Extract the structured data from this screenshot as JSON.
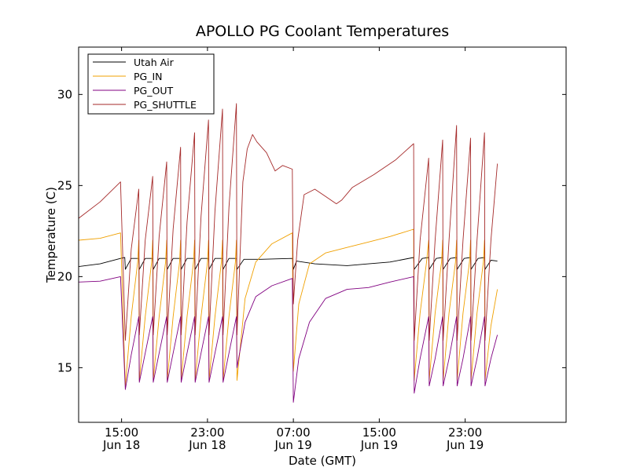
{
  "chart_data": {
    "type": "line",
    "title": "APOLLO PG Coolant Temperatures",
    "xlabel": "Date (GMT)",
    "ylabel": "Temperature (C)",
    "x_unit": "hours since Jun 18 00:00 GMT",
    "xlim": [
      11.0,
      56.4
    ],
    "ylim": [
      12.0,
      32.6
    ],
    "legend_position": "top-left",
    "x_ticks": [
      {
        "value": 15,
        "line1": "15:00",
        "line2": "Jun 18"
      },
      {
        "value": 23,
        "line1": "23:00",
        "line2": "Jun 18"
      },
      {
        "value": 31,
        "line1": "07:00",
        "line2": "Jun 19"
      },
      {
        "value": 39,
        "line1": "15:00",
        "line2": "Jun 19"
      },
      {
        "value": 47,
        "line1": "23:00",
        "line2": "Jun 19"
      }
    ],
    "y_ticks": [
      {
        "value": 15,
        "label": "15"
      },
      {
        "value": 20,
        "label": "20"
      },
      {
        "value": 25,
        "label": "25"
      },
      {
        "value": 30,
        "label": "30"
      }
    ],
    "series": [
      {
        "name": "Utah Air",
        "color": "#000000",
        "x": [
          11.0,
          13.0,
          14.9,
          15.3,
          15.35,
          15.9,
          16.6,
          16.65,
          17.2,
          17.9,
          17.95,
          18.5,
          19.2,
          19.25,
          19.8,
          20.5,
          20.55,
          21.1,
          21.8,
          21.85,
          22.4,
          23.1,
          23.15,
          23.7,
          24.4,
          24.45,
          25.0,
          25.7,
          25.75,
          26.4,
          28.0,
          30.9,
          31.0,
          31.3,
          33.0,
          36.0,
          38.0,
          40.0,
          42.2,
          42.25,
          43.0,
          43.6,
          43.65,
          44.3,
          44.9,
          44.95,
          45.6,
          46.2,
          46.25,
          46.9,
          47.5,
          47.55,
          48.2,
          48.8,
          48.85,
          49.4,
          50.0
        ],
        "y": [
          20.55,
          20.7,
          21.0,
          21.05,
          20.4,
          21.0,
          21.0,
          20.4,
          21.0,
          21.0,
          20.4,
          21.0,
          21.0,
          20.4,
          21.0,
          21.0,
          20.4,
          21.0,
          21.0,
          20.4,
          21.0,
          21.0,
          20.4,
          21.0,
          21.0,
          20.4,
          21.0,
          21.0,
          20.4,
          20.95,
          20.95,
          21.0,
          20.4,
          20.85,
          20.7,
          20.6,
          20.7,
          20.8,
          21.05,
          20.4,
          21.0,
          21.05,
          20.4,
          21.0,
          21.05,
          20.4,
          21.0,
          21.05,
          20.4,
          21.0,
          21.05,
          20.4,
          21.0,
          21.05,
          20.4,
          20.9,
          20.85
        ]
      },
      {
        "name": "PG_IN",
        "color": "#f0a000",
        "x": [
          11.0,
          13.0,
          14.9,
          15.35,
          15.9,
          16.5,
          16.6,
          16.65,
          17.2,
          17.8,
          17.9,
          17.95,
          18.5,
          19.1,
          19.2,
          19.25,
          19.8,
          20.4,
          20.5,
          20.55,
          21.1,
          21.7,
          21.8,
          21.85,
          22.4,
          23.0,
          23.1,
          23.15,
          23.7,
          24.3,
          24.4,
          24.45,
          25.0,
          25.6,
          25.7,
          25.75,
          26.5,
          27.5,
          29.0,
          30.9,
          31.0,
          31.5,
          32.5,
          34.0,
          36.0,
          38.0,
          40.0,
          42.2,
          42.25,
          42.8,
          43.4,
          43.6,
          43.65,
          44.2,
          44.8,
          44.9,
          44.95,
          45.5,
          46.1,
          46.2,
          46.25,
          46.8,
          47.4,
          47.5,
          47.55,
          48.1,
          48.7,
          48.8,
          48.85,
          49.4,
          50.0
        ],
        "y": [
          22.0,
          22.1,
          22.4,
          14.0,
          17.8,
          20.8,
          22.0,
          14.3,
          17.8,
          20.8,
          22.0,
          14.3,
          17.8,
          20.8,
          22.0,
          14.3,
          17.8,
          20.8,
          22.0,
          14.3,
          17.8,
          20.8,
          22.0,
          14.3,
          17.8,
          20.8,
          22.0,
          14.3,
          17.8,
          20.8,
          22.0,
          14.3,
          17.8,
          20.8,
          22.0,
          14.3,
          18.8,
          20.8,
          21.8,
          22.4,
          14.8,
          18.5,
          20.7,
          21.3,
          21.6,
          21.9,
          22.2,
          22.6,
          14.3,
          18.0,
          20.8,
          22.0,
          14.3,
          18.0,
          20.8,
          22.0,
          14.3,
          18.0,
          20.8,
          22.0,
          14.3,
          18.0,
          20.8,
          22.0,
          14.3,
          18.0,
          20.8,
          22.0,
          14.3,
          17.3,
          19.3
        ]
      },
      {
        "name": "PG_OUT",
        "color": "#800080",
        "x": [
          11.0,
          13.0,
          14.9,
          15.35,
          15.9,
          16.6,
          16.65,
          17.2,
          17.9,
          17.95,
          18.5,
          19.2,
          19.25,
          19.8,
          20.5,
          20.55,
          21.1,
          21.8,
          21.85,
          22.4,
          23.1,
          23.15,
          23.7,
          24.4,
          24.45,
          25.0,
          25.7,
          25.75,
          26.5,
          27.5,
          29.0,
          30.9,
          31.0,
          31.5,
          32.5,
          34.0,
          36.0,
          38.0,
          40.0,
          42.2,
          42.25,
          42.8,
          43.6,
          43.65,
          44.2,
          44.9,
          44.95,
          45.5,
          46.2,
          46.25,
          46.8,
          47.5,
          47.55,
          48.1,
          48.8,
          48.85,
          49.4,
          50.0
        ],
        "y": [
          19.7,
          19.75,
          20.0,
          13.8,
          15.7,
          17.8,
          14.2,
          15.8,
          17.8,
          14.2,
          15.8,
          17.8,
          14.2,
          15.8,
          17.8,
          14.2,
          15.8,
          17.8,
          14.2,
          15.8,
          17.8,
          14.2,
          15.8,
          17.8,
          14.2,
          15.8,
          17.8,
          15.0,
          17.5,
          18.9,
          19.5,
          19.9,
          13.1,
          15.5,
          17.5,
          18.8,
          19.3,
          19.4,
          19.7,
          20.0,
          13.6,
          15.5,
          17.8,
          14.0,
          15.5,
          17.8,
          14.0,
          15.5,
          17.8,
          14.0,
          15.5,
          17.8,
          14.0,
          15.5,
          17.8,
          14.0,
          15.5,
          16.8
        ]
      },
      {
        "name": "PG_SHUTTLE",
        "color": "#a52a2a",
        "x": [
          11.0,
          13.0,
          14.9,
          15.35,
          15.9,
          16.6,
          16.65,
          17.2,
          17.9,
          17.95,
          18.5,
          19.2,
          19.25,
          19.8,
          20.5,
          20.55,
          21.1,
          21.8,
          21.85,
          22.4,
          23.1,
          23.15,
          23.7,
          24.4,
          24.45,
          25.0,
          25.7,
          25.75,
          26.3,
          26.7,
          27.2,
          27.6,
          28.5,
          29.3,
          30.0,
          30.9,
          31.0,
          31.4,
          32.0,
          33.0,
          34.0,
          35.0,
          35.5,
          36.5,
          38.5,
          40.5,
          42.2,
          42.25,
          42.8,
          43.6,
          43.65,
          44.2,
          44.9,
          44.95,
          45.5,
          46.2,
          46.25,
          46.8,
          47.5,
          47.55,
          48.1,
          48.8,
          48.85,
          49.4,
          50.0
        ],
        "y": [
          23.2,
          24.1,
          25.2,
          16.5,
          21.5,
          24.8,
          16.8,
          22.0,
          25.5,
          16.8,
          22.2,
          26.3,
          16.8,
          22.6,
          27.1,
          16.8,
          23.0,
          27.9,
          16.8,
          23.3,
          28.6,
          16.8,
          23.6,
          29.2,
          16.8,
          23.8,
          29.5,
          16.8,
          25.2,
          27.0,
          27.8,
          27.4,
          26.8,
          25.8,
          26.1,
          25.9,
          18.5,
          22.0,
          24.5,
          24.8,
          24.4,
          24.0,
          24.2,
          24.9,
          25.6,
          26.4,
          27.3,
          16.5,
          22.0,
          26.5,
          16.5,
          22.0,
          27.5,
          16.5,
          22.0,
          28.3,
          16.5,
          22.0,
          27.6,
          16.5,
          22.0,
          27.9,
          16.5,
          22.0,
          26.2
        ]
      }
    ]
  }
}
